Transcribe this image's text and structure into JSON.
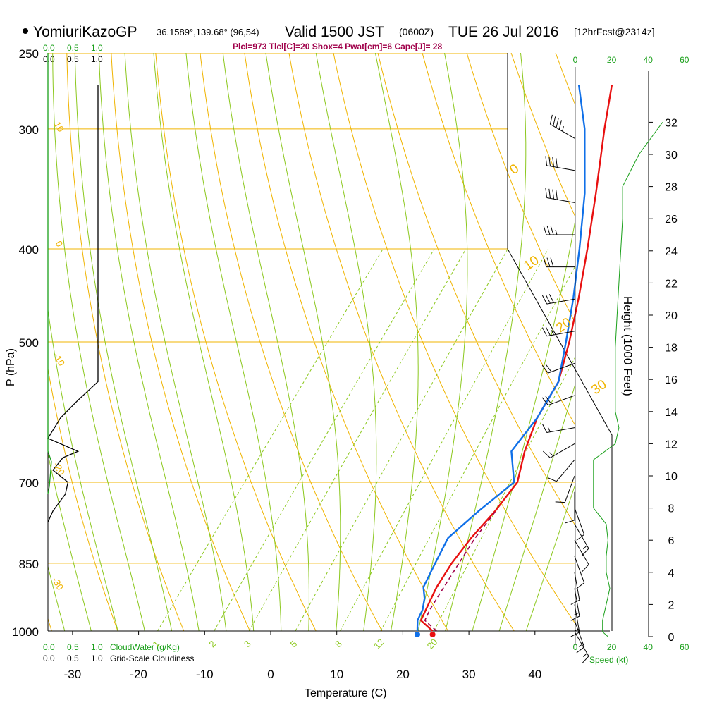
{
  "header": {
    "station": "YomiuriKazoGP",
    "coords": "36.1589°,139.68° (96,54)",
    "valid": "Valid 1500 JST",
    "zulu": "(0600Z)",
    "date": "TUE 26 Jul 2016",
    "forecast": "[12hrFcst@2314z]",
    "indices": "Plcl=973 Tlcl[C]=20 Shox=4 Pwat[cm]=6 Cape[J]= 28"
  },
  "colors": {
    "isobar": "#f0b400",
    "dry_adiabat": "#f0b400",
    "moist_adiabat": "#8cc81e",
    "mixing_ratio": "#8cc81e",
    "temperature": "#e81010",
    "dewpoint": "#1070e8",
    "parcel": "#a0004a",
    "cloud": "#1aa01a",
    "wind_speed": "#1aa01a"
  },
  "chart_data": {
    "type": "skewt",
    "title": "YomiuriKazoGP Valid 1500 JST (0600Z) TUE 26 Jul 2016",
    "xlabel": "Temperature (C)",
    "ylabel": "P (hPa)",
    "y2label": "Height (1000 Feet)",
    "x_ticks": [
      "-30",
      "-20",
      "-10",
      "0",
      "10",
      "20",
      "30",
      "40"
    ],
    "x_tick_values": [
      -30,
      -20,
      -10,
      0,
      10,
      20,
      30,
      40
    ],
    "p_ticks": [
      "250",
      "300",
      "400",
      "500",
      "700",
      "850",
      "1000"
    ],
    "p_tick_values": [
      250,
      300,
      400,
      500,
      700,
      850,
      1000
    ],
    "height_ticks": [
      "0",
      "2",
      "4",
      "6",
      "8",
      "10",
      "12",
      "14",
      "16",
      "18",
      "20",
      "22",
      "24",
      "26",
      "28",
      "30",
      "32"
    ],
    "height_tick_values": [
      0,
      2,
      4,
      6,
      8,
      10,
      12,
      14,
      16,
      18,
      20,
      22,
      24,
      26,
      28,
      30,
      32
    ],
    "mixing_ratio_labels": [
      "1",
      "2",
      "3",
      "5",
      "8",
      "12",
      "20"
    ],
    "mixing_ratio_values": [
      1,
      2,
      3,
      5,
      8,
      12,
      20
    ],
    "dry_adiabat_labels": [
      "10",
      "0",
      "-10",
      "-20",
      "-30"
    ],
    "moist_adiabat_labels": [
      "0",
      "10",
      "20",
      "30"
    ],
    "temperature": {
      "p": [
        1000,
        975,
        950,
        925,
        900,
        850,
        800,
        750,
        700,
        650,
        600,
        550,
        500,
        450,
        400,
        350,
        300,
        270
      ],
      "t": [
        24.5,
        21.5,
        21.0,
        20.5,
        20.0,
        19.5,
        19.5,
        20.0,
        20.0,
        17.5,
        15.5,
        14.5,
        11.5,
        7.8,
        3.4,
        -1.8,
        -8.0,
        -12.0
      ]
    },
    "dewpoint": {
      "p": [
        1000,
        975,
        950,
        925,
        900,
        850,
        800,
        750,
        700,
        650,
        600,
        550,
        500,
        450,
        400,
        350,
        300,
        270
      ],
      "td": [
        22.2,
        21.0,
        20.5,
        19.5,
        18.0,
        17.0,
        16.0,
        17.5,
        19.5,
        15.5,
        15.5,
        14.5,
        11.0,
        7.0,
        2.2,
        -3.5,
        -11.0,
        -17.0
      ]
    },
    "parcel": {
      "p": [
        1000,
        975,
        950,
        900,
        850,
        800,
        750
      ],
      "t": [
        24.5,
        21.5,
        21.0,
        20.5,
        20.0,
        19.5,
        19.5
      ]
    },
    "cloud_scale_labels": [
      "0.0",
      "0.5",
      "1.0"
    ],
    "cloudwater_label": "CloudWater (g/Kg)",
    "cloudiness_label": "Grid-Scale Cloudiness",
    "cloudiness": {
      "p": [
        270,
        300,
        350,
        400,
        450,
        500,
        550,
        575,
        600,
        630,
        650,
        660,
        680,
        700,
        720,
        750,
        770
      ],
      "v": [
        1.0,
        1.0,
        1.0,
        1.0,
        1.0,
        1.0,
        1.0,
        0.6,
        0.25,
        0.0,
        0.6,
        0.3,
        0.1,
        0.4,
        0.35,
        0.1,
        0.0
      ]
    },
    "wind_speed_ticks": [
      "0",
      "20",
      "40",
      "60"
    ],
    "wind_speed_tick_values": [
      0,
      20,
      40,
      60
    ],
    "wind_speed_label": "Speed (kt)",
    "wind_speed": {
      "h": [
        0,
        0.3,
        1,
        2,
        3,
        4,
        5,
        6,
        7,
        8,
        9,
        10,
        11,
        12,
        13,
        14,
        16,
        18,
        20,
        22,
        24,
        26,
        28,
        30,
        32
      ],
      "s": [
        18,
        15,
        15,
        17,
        19,
        17,
        17,
        18,
        17,
        10,
        10,
        10,
        10,
        22,
        24,
        22,
        22,
        22,
        23,
        24,
        25,
        26,
        26,
        35,
        48
      ]
    },
    "wind_barbs": {
      "h": [
        31,
        29,
        27,
        25,
        23,
        21,
        19,
        17,
        15,
        13,
        12,
        11,
        10,
        9,
        8,
        7,
        6,
        5,
        4,
        3,
        2,
        1,
        0.3
      ],
      "spd": [
        45,
        40,
        40,
        35,
        30,
        30,
        25,
        20,
        20,
        15,
        15,
        10,
        10,
        10,
        10,
        15,
        10,
        10,
        10,
        15,
        15,
        15,
        15
      ],
      "dir": [
        300,
        280,
        280,
        270,
        270,
        260,
        260,
        250,
        250,
        260,
        240,
        220,
        200,
        180,
        160,
        150,
        150,
        160,
        170,
        170,
        170,
        160,
        150
      ]
    }
  }
}
